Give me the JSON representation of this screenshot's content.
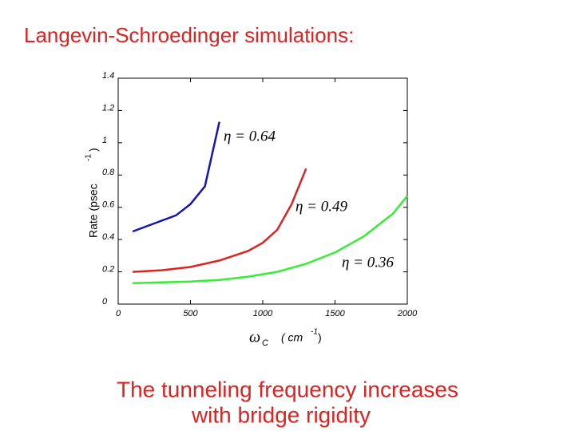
{
  "chart_data": {
    "type": "line",
    "title": "Langevin-Schroedinger simulations:",
    "caption": [
      "The tunneling frequency increases",
      "with bridge rigidity"
    ],
    "x_label": {
      "symbol": "ω",
      "subscript": "C",
      "unit": "( cm",
      "exponent": "-1",
      "close": ")"
    },
    "y_label": {
      "text": "Rate (psec",
      "exponent": "-1",
      "close": ")"
    },
    "xlim": [
      0,
      2000
    ],
    "ylim": [
      0,
      1.4
    ],
    "xticks": [
      0,
      500,
      1000,
      1500,
      2000
    ],
    "yticks": [
      0,
      0.2,
      0.4,
      0.6,
      0.8,
      1,
      1.2,
      1.4
    ],
    "series": [
      {
        "name": "η = 0.64",
        "color": "#1414b8",
        "x": [
          100,
          400,
          500,
          600,
          700
        ],
        "values": [
          0.45,
          0.55,
          0.62,
          0.73,
          1.13
        ]
      },
      {
        "name": "η = 0.49",
        "color": "#dd2222",
        "x": [
          100,
          300,
          500,
          700,
          900,
          1000,
          1100,
          1200,
          1300
        ],
        "values": [
          0.2,
          0.21,
          0.23,
          0.27,
          0.33,
          0.38,
          0.46,
          0.62,
          0.84
        ]
      },
      {
        "name": "η = 0.36",
        "color": "#33ee33",
        "x": [
          100,
          300,
          500,
          700,
          900,
          1100,
          1300,
          1500,
          1700,
          1800,
          1900,
          2000
        ],
        "values": [
          0.13,
          0.135,
          0.14,
          0.15,
          0.17,
          0.2,
          0.25,
          0.32,
          0.42,
          0.49,
          0.56,
          0.67
        ]
      }
    ]
  }
}
